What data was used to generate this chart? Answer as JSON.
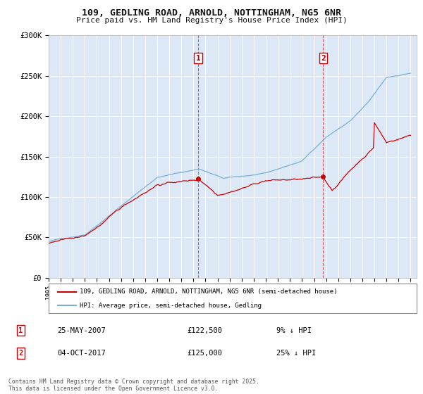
{
  "title_line1": "109, GEDLING ROAD, ARNOLD, NOTTINGHAM, NG5 6NR",
  "title_line2": "Price paid vs. HM Land Registry's House Price Index (HPI)",
  "background_color": "#ffffff",
  "plot_background_color": "#dce8f5",
  "grid_color": "#ffffff",
  "hpi_color": "#7ab0d4",
  "price_color": "#cc0000",
  "ylim": [
    0,
    300000
  ],
  "ytick_labels": [
    "£0",
    "£50K",
    "£100K",
    "£150K",
    "£200K",
    "£250K",
    "£300K"
  ],
  "ytick_values": [
    0,
    50000,
    100000,
    150000,
    200000,
    250000,
    300000
  ],
  "legend_label_price": "109, GEDLING ROAD, ARNOLD, NOTTINGHAM, NG5 6NR (semi-detached house)",
  "legend_label_hpi": "HPI: Average price, semi-detached house, Gedling",
  "annotation1_label": "1",
  "annotation1_date": "25-MAY-2007",
  "annotation1_price": "£122,500",
  "annotation1_hpi": "9% ↓ HPI",
  "annotation2_label": "2",
  "annotation2_date": "04-OCT-2017",
  "annotation2_price": "£125,000",
  "annotation2_hpi": "25% ↓ HPI",
  "footer": "Contains HM Land Registry data © Crown copyright and database right 2025.\nThis data is licensed under the Open Government Licence v3.0.",
  "sale1_year": 2007.38,
  "sale1_price": 122500,
  "sale2_year": 2017.75,
  "sale2_price": 125000
}
